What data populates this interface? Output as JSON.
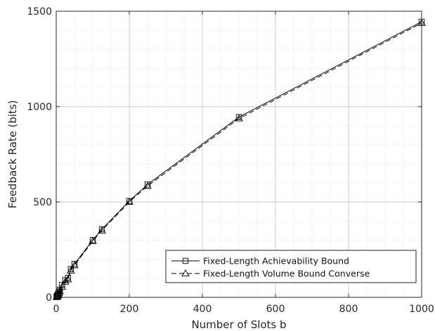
{
  "chart_data": {
    "type": "line",
    "title": "",
    "xlabel": "Number of Slots b",
    "ylabel": "Feedback Rate (bits)",
    "xlim": [
      0,
      1000
    ],
    "ylim": [
      0,
      1500
    ],
    "x_ticks": [
      0,
      200,
      400,
      600,
      800,
      1000
    ],
    "y_ticks": [
      0,
      500,
      1000,
      1500
    ],
    "x_tick_labels": [
      "0",
      "200",
      "400",
      "600",
      "800",
      "1000"
    ],
    "y_tick_labels": [
      "0",
      "500",
      "1000",
      "1500"
    ],
    "grid": true,
    "legend_position": "bottom-right",
    "series": [
      {
        "name": "Fixed-Length Achievability Bound",
        "marker": "square",
        "line_style": "solid",
        "color": "#000000",
        "x": [
          1,
          2,
          3,
          4,
          5,
          6,
          8,
          10,
          16,
          25,
          32,
          40,
          50,
          100,
          125,
          200,
          250,
          500,
          1000
        ],
        "y": [
          3,
          6,
          10,
          13,
          16,
          22,
          30,
          40,
          65,
          90,
          102,
          148,
          175,
          300,
          357,
          505,
          592,
          945,
          1445
        ]
      },
      {
        "name": "Fixed-Length Volume Bound Converse",
        "marker": "triangle",
        "line_style": "dashed",
        "color": "#000000",
        "x": [
          1,
          2,
          3,
          4,
          5,
          6,
          8,
          10,
          16,
          25,
          32,
          40,
          50,
          100,
          125,
          200,
          250,
          500,
          1000
        ],
        "y": [
          1,
          3,
          6,
          8,
          11,
          16,
          23,
          32,
          55,
          82,
          94,
          140,
          168,
          295,
          350,
          500,
          584,
          937,
          1438
        ]
      }
    ]
  }
}
